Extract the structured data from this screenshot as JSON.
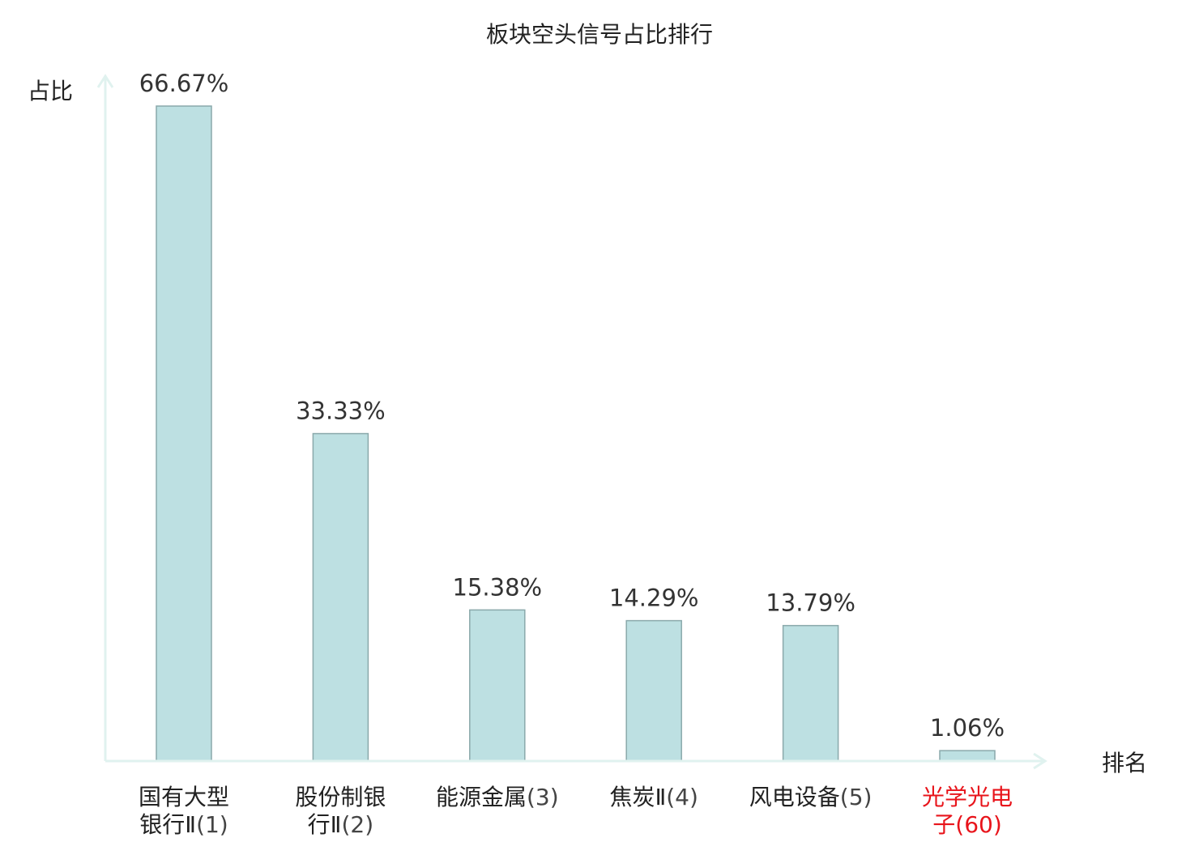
{
  "chart_data": {
    "type": "bar",
    "title": "板块空头信号占比排行",
    "xlabel": "排名",
    "ylabel": "占比",
    "categories": [
      {
        "name_lines": [
          "国有大型",
          "银行Ⅱ"
        ],
        "rank": "(1)",
        "highlight": false
      },
      {
        "name_lines": [
          "股份制银",
          "行Ⅱ"
        ],
        "rank": "(2)",
        "highlight": false
      },
      {
        "name_lines": [
          "能源金属"
        ],
        "rank": "(3)",
        "highlight": false
      },
      {
        "name_lines": [
          "焦炭Ⅱ"
        ],
        "rank": "(4)",
        "highlight": false
      },
      {
        "name_lines": [
          "风电设备"
        ],
        "rank": "(5)",
        "highlight": false
      },
      {
        "name_lines": [
          "光学光电",
          "子"
        ],
        "rank": "(60)",
        "highlight": true
      }
    ],
    "values": [
      66.67,
      33.33,
      15.38,
      14.29,
      13.79,
      1.06
    ],
    "value_labels": [
      "66.67%",
      "33.33%",
      "15.38%",
      "14.29%",
      "13.79%",
      "1.06%"
    ],
    "ylim": [
      0,
      69
    ],
    "grid": false,
    "colors": {
      "bar_fill": "#bde0e2",
      "bar_stroke": "#8aa9ab",
      "axis": "#e0f2ef",
      "highlight_text": "#e8141b",
      "normal_text": "#222222",
      "rank_text": "#444444"
    }
  }
}
